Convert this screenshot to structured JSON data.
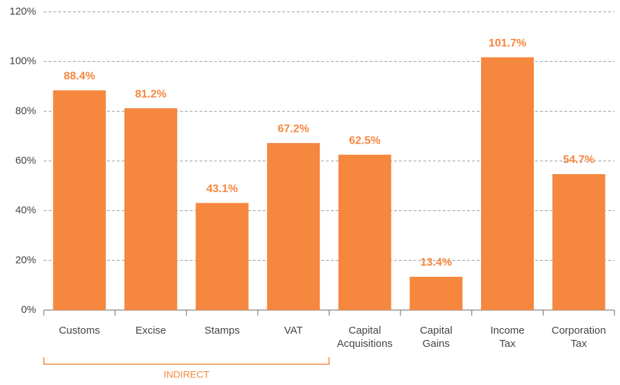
{
  "chart_data": {
    "type": "bar",
    "categories": [
      "Customs",
      "Excise",
      "Stamps",
      "VAT",
      "Capital Acquisitions",
      "Capital Gains",
      "Income Tax",
      "Corporation Tax"
    ],
    "values": [
      88.4,
      81.2,
      43.1,
      67.2,
      62.5,
      13.4,
      101.7,
      54.7
    ],
    "value_labels": [
      "88.4%",
      "81.2%",
      "43.1%",
      "67.2%",
      "62.5%",
      "13.4%",
      "101.7%",
      "54.7%"
    ],
    "color": "#f5873f",
    "ylim": [
      0,
      120
    ],
    "yticks": [
      {
        "value": 0,
        "label": "0%"
      },
      {
        "value": 20,
        "label": "20%"
      },
      {
        "value": 40,
        "label": "40%"
      },
      {
        "value": 60,
        "label": "60%"
      },
      {
        "value": 80,
        "label": "80%"
      },
      {
        "value": 100,
        "label": "100%"
      },
      {
        "value": 120,
        "label": "120%"
      }
    ],
    "grid": true,
    "annotations": [
      {
        "text": "INDIRECT"
      }
    ]
  }
}
